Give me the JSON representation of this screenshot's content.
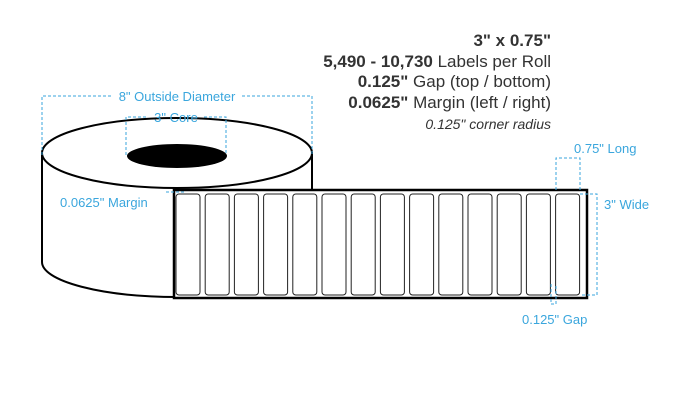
{
  "specs": {
    "size": "3\" x 0.75\"",
    "labels_count_bold": "5,490 - 10,730",
    "labels_count_text": " Labels per Roll",
    "gap_bold": "0.125\"",
    "gap_text": " Gap (top / bottom)",
    "margin_bold": "0.0625\"",
    "margin_text": " Margin (left / right)",
    "corner_radius": "0.125\" corner radius"
  },
  "dimensions": {
    "outside_diameter": "8\" Outside Diameter",
    "core": "3\" Core",
    "margin": "0.0625\" Margin",
    "long": "0.75\" Long",
    "wide": "3\" Wide",
    "gap": "0.125\" Gap"
  },
  "colors": {
    "dimension": "#3aa6dd",
    "text": "#333333",
    "outline": "#000000"
  }
}
